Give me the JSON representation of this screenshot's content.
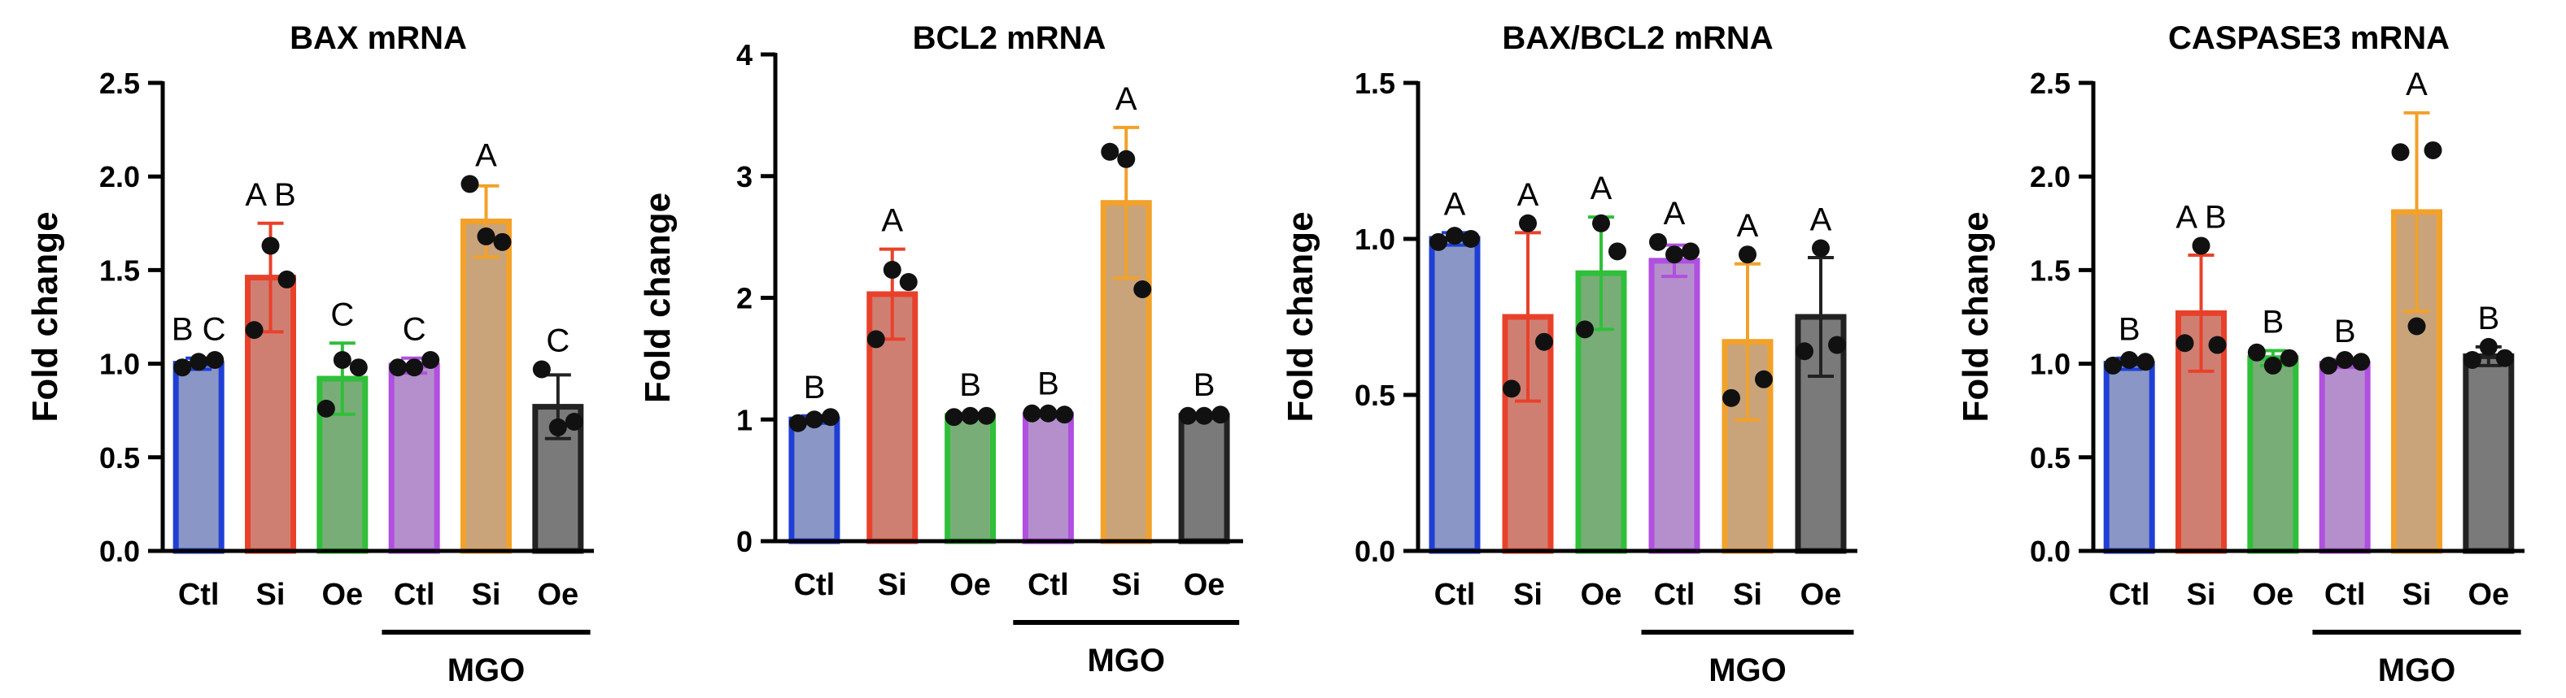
{
  "conditions": {
    "colors": [
      "#1f3fd6",
      "#e8412b",
      "#2fbf3a",
      "#b04fe0",
      "#f2a12b",
      "#222222"
    ],
    "fills": [
      "#8a96c6",
      "#cf7f72",
      "#79ad77",
      "#b58fcc",
      "#c9a47a",
      "#7a7a7a"
    ]
  },
  "chart_data": [
    {
      "type": "bar",
      "title": "BAX mRNA",
      "ylabel": "Fold change",
      "xlabel": "",
      "ylim": [
        0,
        2.5
      ],
      "yticks": [
        "0.0",
        "0.5",
        "1.0",
        "1.5",
        "2.0",
        "2.5"
      ],
      "ytick_values": [
        0,
        0.5,
        1.0,
        1.5,
        2.0,
        2.5
      ],
      "categories": [
        "Ctl",
        "Si",
        "Oe",
        "Ctl",
        "Si",
        "Oe"
      ],
      "group_label": "MGO",
      "group_span": [
        3,
        5
      ],
      "values": [
        1.0,
        1.46,
        0.92,
        0.99,
        1.76,
        0.77
      ],
      "errors": [
        0.03,
        0.29,
        0.19,
        0.04,
        0.19,
        0.17
      ],
      "points": [
        [
          0.98,
          1.01,
          1.02
        ],
        [
          1.18,
          1.63,
          1.45
        ],
        [
          0.76,
          1.02,
          0.98
        ],
        [
          0.98,
          0.98,
          1.02
        ],
        [
          1.96,
          1.68,
          1.65
        ],
        [
          0.97,
          0.66,
          0.69
        ]
      ],
      "sig_letters": [
        "B C",
        "A B",
        "C",
        "C",
        "A",
        "C"
      ]
    },
    {
      "type": "bar",
      "title": "BCL2 mRNA",
      "ylabel": "Fold change",
      "xlabel": "",
      "ylim": [
        0,
        4
      ],
      "yticks": [
        "0",
        "1",
        "2",
        "3",
        "4"
      ],
      "ytick_values": [
        0,
        1,
        2,
        3,
        4
      ],
      "categories": [
        "Ctl",
        "Si",
        "Oe",
        "Ctl",
        "Si",
        "Oe"
      ],
      "group_label": "MGO",
      "group_span": [
        3,
        5
      ],
      "values": [
        1.0,
        2.03,
        1.03,
        1.04,
        2.78,
        1.03
      ],
      "errors": [
        0.03,
        0.37,
        0.02,
        0.02,
        0.62,
        0.02
      ],
      "points": [
        [
          0.97,
          1.0,
          1.02
        ],
        [
          1.66,
          2.23,
          2.13
        ],
        [
          1.02,
          1.03,
          1.03
        ],
        [
          1.05,
          1.05,
          1.04
        ],
        [
          3.2,
          3.14,
          2.07
        ],
        [
          1.03,
          1.03,
          1.04
        ]
      ],
      "sig_letters": [
        "B",
        "A",
        "B",
        "B",
        "A",
        "B"
      ]
    },
    {
      "type": "bar",
      "title": "BAX/BCL2 mRNA",
      "ylabel": "Fold change",
      "xlabel": "",
      "ylim": [
        0,
        1.5
      ],
      "yticks": [
        "0.0",
        "0.5",
        "1.0",
        "1.5"
      ],
      "ytick_values": [
        0,
        0.5,
        1.0,
        1.5
      ],
      "categories": [
        "Ctl",
        "Si",
        "Oe",
        "Ctl",
        "Si",
        "Oe"
      ],
      "group_label": "MGO",
      "group_span": [
        3,
        5
      ],
      "values": [
        1.0,
        0.75,
        0.89,
        0.93,
        0.67,
        0.75
      ],
      "errors": [
        0.02,
        0.27,
        0.18,
        0.05,
        0.25,
        0.19
      ],
      "points": [
        [
          0.99,
          1.01,
          1.0
        ],
        [
          0.52,
          1.05,
          0.67
        ],
        [
          0.71,
          1.05,
          0.96
        ],
        [
          0.99,
          0.95,
          0.96
        ],
        [
          0.49,
          0.95,
          0.55
        ],
        [
          0.64,
          0.97,
          0.66
        ]
      ],
      "sig_letters": [
        "A",
        "A",
        "A",
        "A",
        "A",
        "A"
      ]
    },
    {
      "type": "bar",
      "title": "CASPASE3 mRNA",
      "ylabel": "Fold change",
      "xlabel": "",
      "ylim": [
        0,
        2.5
      ],
      "yticks": [
        "0.0",
        "0.5",
        "1.0",
        "1.5",
        "2.0",
        "2.5"
      ],
      "ytick_values": [
        0,
        0.5,
        1.0,
        1.5,
        2.0,
        2.5
      ],
      "categories": [
        "Ctl",
        "Si",
        "Oe",
        "Ctl",
        "Si",
        "Oe"
      ],
      "group_label": "MGO",
      "group_span": [
        3,
        5
      ],
      "values": [
        1.0,
        1.27,
        1.03,
        1.0,
        1.81,
        1.04
      ],
      "errors": [
        0.03,
        0.31,
        0.04,
        0.02,
        0.53,
        0.05
      ],
      "points": [
        [
          0.99,
          1.02,
          1.01
        ],
        [
          1.11,
          1.63,
          1.1
        ],
        [
          1.06,
          0.99,
          1.03
        ],
        [
          0.99,
          1.02,
          1.01
        ],
        [
          2.13,
          1.2,
          2.14
        ],
        [
          1.02,
          1.09,
          1.03
        ]
      ],
      "sig_letters": [
        "B",
        "A B",
        "B",
        "B",
        "A",
        "B"
      ]
    }
  ]
}
